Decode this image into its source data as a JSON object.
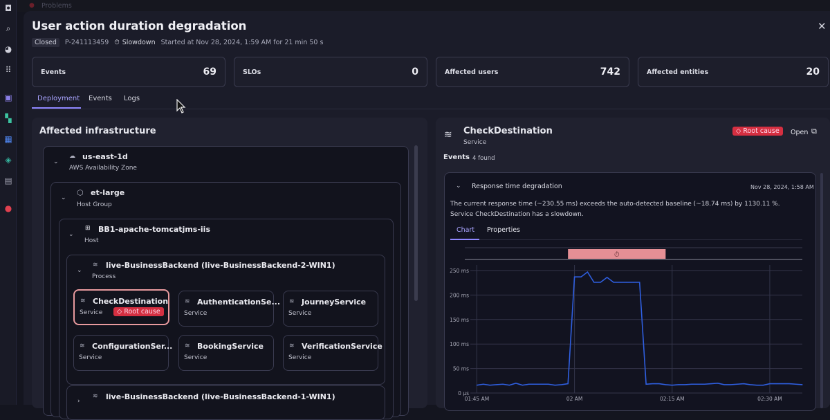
{
  "topbar": {
    "app_title": "Problems"
  },
  "sidebar": {
    "icons": [
      "dynatrace-logo-icon",
      "search-icon",
      "copilot-icon",
      "apps-grid-icon",
      "kubernetes-icon",
      "infrastructure-icon",
      "dashboards-icon",
      "services-icon",
      "hosts-icon",
      "problems-icon"
    ]
  },
  "problem": {
    "title": "User action duration degradation",
    "status": "Closed",
    "id": "P-241113459",
    "category": "Slowdown",
    "started": "Started at Nov 28, 2024, 1:59 AM for 21 min 50 s"
  },
  "stats": [
    {
      "label": "Events",
      "value": "69"
    },
    {
      "label": "SLOs",
      "value": "0"
    },
    {
      "label": "Affected users",
      "value": "742"
    },
    {
      "label": "Affected entities",
      "value": "20"
    }
  ],
  "tabs": [
    {
      "label": "Deployment",
      "active": true
    },
    {
      "label": "Events"
    },
    {
      "label": "Logs"
    }
  ],
  "infra": {
    "title": "Affected infrastructure",
    "zone": {
      "name": "us-east-1d",
      "type": "AWS Availability Zone"
    },
    "hostgroup": {
      "name": "et-large",
      "type": "Host Group"
    },
    "host": {
      "name": "BB1-apache-tomcatjms-iis",
      "type": "Host"
    },
    "process": {
      "name": "live-BusinessBackend (live-BusinessBackend-2-WIN1)",
      "type": "Process"
    },
    "services": [
      {
        "name": "CheckDestination",
        "type": "Service",
        "root_cause": "Root cause"
      },
      {
        "name": "AuthenticationSe...",
        "type": "Service"
      },
      {
        "name": "JourneyService",
        "type": "Service"
      },
      {
        "name": "ConfigurationSer...",
        "type": "Service"
      },
      {
        "name": "BookingService",
        "type": "Service"
      },
      {
        "name": "VerificationService",
        "type": "Service"
      }
    ],
    "process2": {
      "name": "live-BusinessBackend (live-BusinessBackend-1-WIN1)"
    }
  },
  "detail": {
    "name": "CheckDestination",
    "type": "Service",
    "root_cause": "Root cause",
    "open": "Open",
    "events_label": "Events",
    "events_count": "4 found",
    "event": {
      "title": "Response time degradation",
      "time": "Nov 28, 2024, 1:58 AM",
      "description": "The current response time (~230.55 ms) exceeds the auto-detected baseline (~18.74 ms) by 1130.11 %. Service CheckDestination has a slowdown.",
      "tabs": [
        {
          "label": "Chart",
          "active": true
        },
        {
          "label": "Properties"
        }
      ]
    }
  },
  "colors": {
    "accent": "#8f87ff",
    "root_cause": "#d52f41",
    "line": "#2f5fe0",
    "event_bar": "#e58f95"
  },
  "chart_data": {
    "type": "line",
    "x_ticks": [
      "01:45 AM",
      "02 AM",
      "02:15 AM",
      "02:30 AM"
    ],
    "y_ticks": [
      "0 µs",
      "50 ms",
      "100 ms",
      "150 ms",
      "200 ms",
      "250 ms"
    ],
    "ylim": [
      0,
      250
    ],
    "xlim": [
      "01:44",
      "02:35"
    ],
    "grid": true,
    "event_range": [
      "01:59",
      "02:14"
    ],
    "series": [
      {
        "x": [
          "01:45",
          "01:46",
          "01:47",
          "01:48",
          "01:49",
          "01:50",
          "01:51",
          "01:52",
          "01:53",
          "01:54",
          "01:55",
          "01:56",
          "01:57",
          "01:58",
          "01:59",
          "02:00",
          "02:01",
          "02:02",
          "02:03",
          "02:04",
          "02:05",
          "02:06",
          "02:07",
          "02:08",
          "02:09",
          "02:10",
          "02:11",
          "02:12",
          "02:13",
          "02:14",
          "02:15",
          "02:16",
          "02:17",
          "02:18",
          "02:19",
          "02:20",
          "02:21",
          "02:22",
          "02:23",
          "02:24",
          "02:25",
          "02:26",
          "02:27",
          "02:28",
          "02:29",
          "02:30",
          "02:31",
          "02:32",
          "02:33",
          "02:34",
          "02:35"
        ],
        "values": [
          16,
          18,
          16,
          17,
          18,
          16,
          20,
          16,
          18,
          18,
          18,
          18,
          16,
          17,
          19,
          237,
          237,
          247,
          226,
          226,
          236,
          226,
          226,
          226,
          226,
          226,
          18,
          19,
          19,
          17,
          16,
          17,
          17,
          18,
          18,
          18,
          19,
          20,
          17,
          17,
          18,
          19,
          17,
          16,
          16,
          19,
          19,
          19,
          19,
          18,
          17
        ]
      }
    ]
  }
}
